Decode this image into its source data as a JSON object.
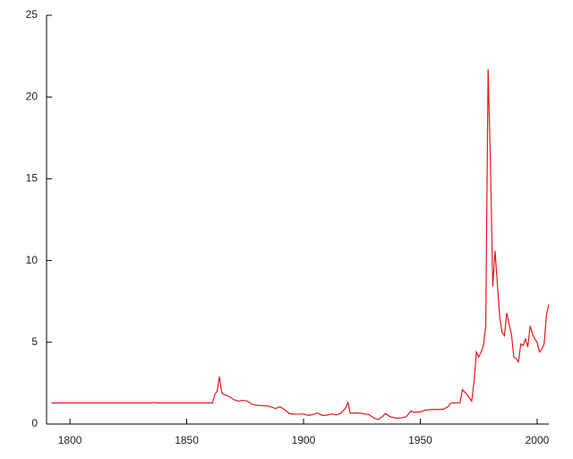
{
  "chart_data": {
    "type": "line",
    "x": [
      1792,
      1835,
      1836,
      1837,
      1861,
      1862,
      1863,
      1864,
      1865,
      1866,
      1868,
      1870,
      1872,
      1874,
      1876,
      1878,
      1880,
      1885,
      1888,
      1890,
      1892,
      1894,
      1897,
      1900,
      1902,
      1904,
      1906,
      1908,
      1910,
      1912,
      1914,
      1916,
      1918,
      1919,
      1920,
      1922,
      1924,
      1926,
      1928,
      1930,
      1932,
      1934,
      1935,
      1937,
      1940,
      1942,
      1944,
      1946,
      1947,
      1950,
      1952,
      1955,
      1958,
      1960,
      1962,
      1963,
      1967,
      1968,
      1970,
      1972,
      1973,
      1974,
      1975,
      1976,
      1977,
      1978,
      1979,
      1980,
      1981,
      1982,
      1983,
      1984,
      1985,
      1986,
      1987,
      1988,
      1989,
      1990,
      1991,
      1992,
      1993,
      1994,
      1995,
      1996,
      1997,
      1998,
      1999,
      2000,
      2001,
      2002,
      2003,
      2004,
      2005
    ],
    "series": [
      {
        "color": "#e3191c",
        "values": [
          1.29,
          1.29,
          1.32,
          1.29,
          1.29,
          1.8,
          2.0,
          2.9,
          1.9,
          1.8,
          1.7,
          1.5,
          1.4,
          1.45,
          1.4,
          1.2,
          1.15,
          1.1,
          0.95,
          1.05,
          0.87,
          0.63,
          0.6,
          0.62,
          0.53,
          0.58,
          0.68,
          0.53,
          0.54,
          0.62,
          0.56,
          0.66,
          0.98,
          1.33,
          0.65,
          0.68,
          0.67,
          0.62,
          0.58,
          0.38,
          0.28,
          0.48,
          0.64,
          0.45,
          0.35,
          0.38,
          0.45,
          0.8,
          0.72,
          0.74,
          0.85,
          0.89,
          0.89,
          0.91,
          1.08,
          1.28,
          1.3,
          2.1,
          1.8,
          1.4,
          2.6,
          4.4,
          4.1,
          4.4,
          4.8,
          6.0,
          21.7,
          16.0,
          8.4,
          10.6,
          8.5,
          6.5,
          5.6,
          5.4,
          6.8,
          6.1,
          5.5,
          4.1,
          4.0,
          3.8,
          4.9,
          4.8,
          5.2,
          4.7,
          6.0,
          5.5,
          5.2,
          5.0,
          4.4,
          4.6,
          4.9,
          6.7,
          7.3
        ]
      }
    ],
    "xlim": [
      1790,
      2005
    ],
    "xticks": [
      1800,
      1850,
      1900,
      1950,
      2000
    ],
    "ylim": [
      0,
      25
    ],
    "yticks": [
      0,
      5,
      10,
      15,
      20,
      25
    ]
  }
}
